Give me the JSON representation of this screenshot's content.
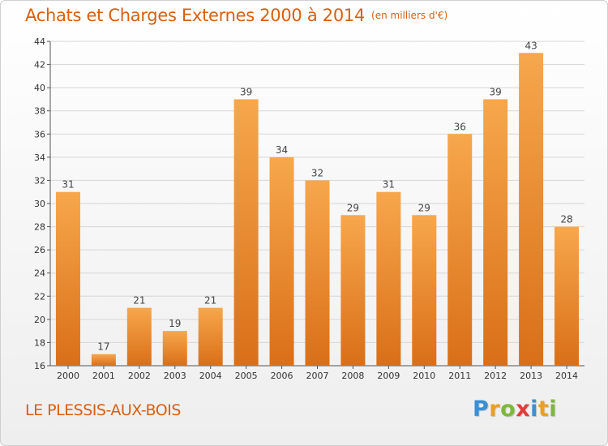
{
  "header": {
    "title": "Achats et Charges Externes 2000 à 2014",
    "unit": "(en milliers d'€)"
  },
  "commune": "LE PLESSIS-AUX-BOIS",
  "logo": {
    "text": "Proxiti",
    "letters": [
      {
        "ch": "P",
        "color": "#3a8fd6"
      },
      {
        "ch": "r",
        "color": "#e8a21f"
      },
      {
        "ch": "o",
        "color": "#7db83a"
      },
      {
        "ch": "x",
        "color": "#e23c3c"
      },
      {
        "ch": "i",
        "color": "#3a8fd6"
      },
      {
        "ch": "t",
        "color": "#e8a21f"
      },
      {
        "ch": "i",
        "color": "#7db83a"
      }
    ]
  },
  "colors": {
    "title": "#d95f0e",
    "bar_top": "#f7a74c",
    "bar_bottom": "#d96f18",
    "grid": "#d6d6d6"
  },
  "chart_data": {
    "type": "bar",
    "title": "Achats et Charges Externes 2000 à 2014",
    "xlabel": "",
    "ylabel": "",
    "categories": [
      "2000",
      "2001",
      "2002",
      "2003",
      "2004",
      "2005",
      "2006",
      "2007",
      "2008",
      "2009",
      "2010",
      "2011",
      "2012",
      "2013",
      "2014"
    ],
    "values": [
      31,
      17,
      21,
      19,
      21,
      39,
      34,
      32,
      29,
      31,
      29,
      36,
      39,
      43,
      28
    ],
    "ylim": [
      16,
      44
    ],
    "yticks": [
      16,
      18,
      20,
      22,
      24,
      26,
      28,
      30,
      32,
      34,
      36,
      38,
      40,
      42,
      44
    ],
    "grid": true,
    "data_labels": true
  }
}
